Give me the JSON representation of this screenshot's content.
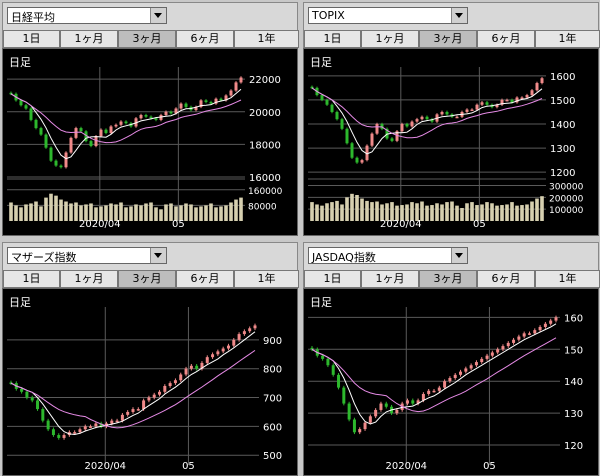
{
  "tabs": [
    "1日",
    "1ヶ月",
    "3ヶ月",
    "6ヶ月",
    "1年"
  ],
  "active_tab": 2,
  "period_label": "日足",
  "colors": {
    "up": "#f08a8a",
    "down": "#2db82d",
    "ma_short": "#ffffff",
    "ma_long": "#e58ae5",
    "volume": "#d6d0b0",
    "grid": "#5a5a5a",
    "label": "#ffffff"
  },
  "chart_data": [
    {
      "type": "candlestick",
      "selector_label": "日経平均",
      "x_tick_labels": [
        "2020/04",
        "05"
      ],
      "y_tick_labels": [
        "22000",
        "20000",
        "18000",
        "16000"
      ],
      "y_ticks": [
        22000,
        20000,
        18000,
        16000
      ],
      "ylim": [
        16000,
        22500
      ],
      "close": [
        21100,
        20700,
        20400,
        20200,
        19500,
        19000,
        18600,
        17800,
        17000,
        16700,
        16600,
        17500,
        18400,
        19000,
        18800,
        18200,
        17900,
        18500,
        18900,
        18700,
        19100,
        19200,
        19400,
        19300,
        19100,
        19600,
        19800,
        19700,
        19600,
        19500,
        19800,
        20000,
        19900,
        20200,
        20500,
        20300,
        20100,
        20300,
        20700,
        20600,
        20500,
        20800,
        20700,
        21000,
        21300,
        21800,
        22100
      ],
      "volume_ticks": [
        160000,
        80000
      ],
      "volume_tick_labels": [
        "160000",
        "80000"
      ],
      "volume_ylim": [
        0,
        200000
      ],
      "volume": [
        95000,
        80000,
        70000,
        85000,
        90000,
        100000,
        75000,
        120000,
        140000,
        130000,
        110000,
        100000,
        90000,
        95000,
        80000,
        85000,
        90000,
        70000,
        75000,
        80000,
        90000,
        85000,
        95000,
        70000,
        75000,
        85000,
        80000,
        90000,
        95000,
        70000,
        60000,
        85000,
        90000,
        75000,
        80000,
        90000,
        85000,
        70000,
        75000,
        80000,
        90000,
        70000,
        75000,
        80000,
        95000,
        110000,
        120000
      ]
    },
    {
      "type": "candlestick",
      "selector_label": "TOPIX",
      "x_tick_labels": [
        "2020/04",
        "05"
      ],
      "y_tick_labels": [
        "1600",
        "1500",
        "1400",
        "1300",
        "1200"
      ],
      "y_ticks": [
        1600,
        1500,
        1400,
        1300,
        1200
      ],
      "ylim": [
        1180,
        1620
      ],
      "close": [
        1550,
        1520,
        1500,
        1480,
        1450,
        1420,
        1380,
        1320,
        1260,
        1240,
        1250,
        1310,
        1360,
        1400,
        1380,
        1340,
        1330,
        1370,
        1400,
        1390,
        1410,
        1420,
        1430,
        1420,
        1410,
        1440,
        1450,
        1440,
        1430,
        1430,
        1450,
        1460,
        1460,
        1480,
        1490,
        1480,
        1470,
        1480,
        1500,
        1500,
        1490,
        1510,
        1510,
        1520,
        1540,
        1570,
        1590
      ],
      "volume_ticks": [
        300000,
        200000,
        100000
      ],
      "volume_tick_labels": [
        "300000",
        "200000",
        "100000"
      ],
      "volume_ylim": [
        0,
        330000
      ],
      "volume": [
        160000,
        140000,
        130000,
        150000,
        160000,
        170000,
        140000,
        200000,
        230000,
        220000,
        190000,
        170000,
        160000,
        165000,
        140000,
        150000,
        160000,
        130000,
        135000,
        140000,
        160000,
        150000,
        165000,
        130000,
        135000,
        150000,
        140000,
        160000,
        165000,
        130000,
        110000,
        150000,
        160000,
        135000,
        140000,
        160000,
        150000,
        130000,
        135000,
        140000,
        160000,
        130000,
        135000,
        140000,
        165000,
        190000,
        210000
      ]
    },
    {
      "type": "candlestick",
      "selector_label": "マザーズ指数",
      "x_tick_labels": [
        "2020/04",
        "05"
      ],
      "y_tick_labels": [
        "900",
        "800",
        "700",
        "600",
        "500"
      ],
      "y_ticks": [
        900,
        800,
        700,
        600,
        500
      ],
      "ylim": [
        480,
        1000
      ],
      "close": [
        750,
        730,
        720,
        700,
        690,
        660,
        620,
        590,
        570,
        560,
        570,
        580,
        580,
        590,
        600,
        600,
        610,
        600,
        610,
        620,
        620,
        640,
        650,
        660,
        660,
        690,
        700,
        710,
        720,
        740,
        750,
        760,
        780,
        800,
        810,
        800,
        820,
        840,
        850,
        860,
        870,
        880,
        900,
        920,
        930,
        940,
        950
      ],
      "volume_ticks": [],
      "volume_tick_labels": [],
      "volume_ylim": [
        0,
        1
      ],
      "volume": []
    },
    {
      "type": "candlestick",
      "selector_label": "JASDAQ指数",
      "x_tick_labels": [
        "2020/04",
        "05"
      ],
      "y_tick_labels": [
        "160",
        "150",
        "140",
        "130",
        "120"
      ],
      "y_ticks": [
        160,
        150,
        140,
        130,
        120
      ],
      "ylim": [
        115,
        162
      ],
      "close": [
        150,
        148,
        147,
        145,
        142,
        138,
        133,
        128,
        124,
        125,
        127,
        129,
        131,
        133,
        132,
        130,
        131,
        133,
        134,
        133,
        134,
        136,
        137,
        137,
        138,
        140,
        141,
        142,
        143,
        144,
        145,
        146,
        147,
        148,
        149,
        150,
        151,
        152,
        153,
        154,
        155,
        155,
        156,
        157,
        158,
        159,
        160
      ],
      "volume_ticks": [],
      "volume_tick_labels": [],
      "volume_ylim": [
        0,
        1
      ],
      "volume": []
    }
  ]
}
